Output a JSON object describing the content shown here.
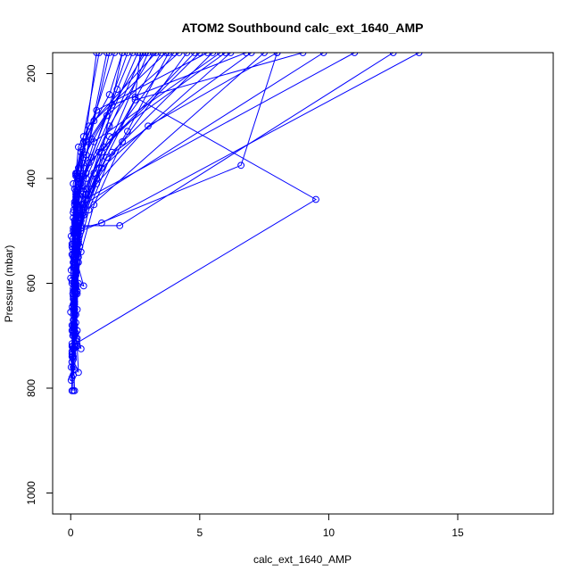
{
  "chart_data": {
    "type": "line",
    "title": "ATOM2 Southbound calc_ext_1640_AMP",
    "xlabel": "calc_ext_1640_AMP",
    "ylabel": "Pressure (mbar)",
    "xlim": [
      -0.7,
      18.7
    ],
    "ylim": [
      1040,
      160
    ],
    "y_reversed": true,
    "x_ticks": [
      0,
      5,
      10,
      15
    ],
    "y_ticks": [
      200,
      400,
      600,
      800,
      1000
    ],
    "series_color": "#0000ff",
    "marker": "open-circle",
    "grid": false,
    "legend": "none",
    "profiles": [
      {
        "points": [
          [
            0.05,
            805
          ],
          [
            0.02,
            760
          ],
          [
            0.08,
            700
          ],
          [
            0.1,
            640
          ],
          [
            0.15,
            570
          ],
          [
            0.3,
            480
          ],
          [
            0.6,
            400
          ],
          [
            1.5,
            300
          ],
          [
            3.2,
            160
          ]
        ]
      },
      {
        "points": [
          [
            0.1,
            805
          ],
          [
            0.05,
            750
          ],
          [
            0.12,
            690
          ],
          [
            0.2,
            620
          ],
          [
            0.4,
            540
          ],
          [
            0.9,
            450
          ],
          [
            2.0,
            330
          ],
          [
            4.5,
            160
          ]
        ]
      },
      {
        "points": [
          [
            0.15,
            805
          ],
          [
            0.1,
            740
          ],
          [
            0.15,
            680
          ],
          [
            0.2,
            610
          ],
          [
            0.35,
            530
          ],
          [
            0.7,
            460
          ],
          [
            1.6,
            350
          ],
          [
            5.5,
            160
          ]
        ]
      },
      {
        "points": [
          [
            0.02,
            785
          ],
          [
            0.05,
            735
          ],
          [
            0.1,
            680
          ],
          [
            0.12,
            600
          ],
          [
            0.25,
            520
          ],
          [
            0.5,
            470
          ],
          [
            1.2,
            380
          ],
          [
            6.2,
            160
          ]
        ]
      },
      {
        "points": [
          [
            0.05,
            780
          ],
          [
            0.08,
            725
          ],
          [
            0.1,
            660
          ],
          [
            0.15,
            590
          ],
          [
            0.3,
            510
          ],
          [
            0.6,
            440
          ],
          [
            1.4,
            360
          ],
          [
            7.0,
            160
          ]
        ]
      },
      {
        "points": [
          [
            0.1,
            775
          ],
          [
            0.05,
            720
          ],
          [
            0.15,
            650
          ],
          [
            0.2,
            580
          ],
          [
            0.3,
            500
          ],
          [
            0.45,
            450
          ],
          [
            2.5,
            250
          ],
          [
            9.0,
            160
          ]
        ]
      },
      {
        "points": [
          [
            0.15,
            765
          ],
          [
            0.2,
            720
          ],
          [
            0.25,
            650
          ],
          [
            0.3,
            560
          ],
          [
            0.4,
            490
          ],
          [
            1.0,
            410
          ],
          [
            3.0,
            300
          ],
          [
            8.0,
            160
          ]
        ]
      },
      {
        "points": [
          [
            0.05,
            740
          ],
          [
            0.1,
            690
          ],
          [
            0.2,
            620
          ],
          [
            0.2,
            545
          ],
          [
            0.4,
            480
          ],
          [
            0.8,
            420
          ],
          [
            2.2,
            310
          ],
          [
            3.8,
            160
          ]
        ]
      },
      {
        "points": [
          [
            0.08,
            735
          ],
          [
            0.12,
            680
          ],
          [
            0.15,
            615
          ],
          [
            0.25,
            535
          ],
          [
            0.35,
            485
          ],
          [
            0.6,
            430
          ],
          [
            1.1,
            350
          ],
          [
            2.8,
            160
          ]
        ]
      },
      {
        "points": [
          [
            0.05,
            730
          ],
          [
            0.1,
            670
          ],
          [
            0.2,
            600
          ],
          [
            0.3,
            525
          ],
          [
            0.5,
            470
          ],
          [
            1.0,
            400
          ],
          [
            2.0,
            160
          ]
        ]
      },
      {
        "points": [
          [
            0.12,
            725
          ],
          [
            0.15,
            660
          ],
          [
            0.15,
            590
          ],
          [
            0.2,
            515
          ],
          [
            0.3,
            455
          ],
          [
            0.5,
            380
          ],
          [
            1.5,
            160
          ]
        ]
      },
      {
        "points": [
          [
            0.08,
            720
          ],
          [
            0.1,
            650
          ],
          [
            0.2,
            580
          ],
          [
            0.15,
            505
          ],
          [
            0.25,
            450
          ],
          [
            0.5,
            395
          ],
          [
            1.8,
            230
          ],
          [
            2.4,
            160
          ]
        ]
      },
      {
        "points": [
          [
            0.05,
            715
          ],
          [
            0.06,
            645
          ],
          [
            0.1,
            570
          ],
          [
            0.15,
            495
          ],
          [
            0.2,
            445
          ],
          [
            0.35,
            410
          ],
          [
            1.0,
            160
          ]
        ]
      },
      {
        "points": [
          [
            0.2,
            710
          ],
          [
            0.15,
            640
          ],
          [
            0.1,
            560
          ],
          [
            0.25,
            490
          ],
          [
            0.3,
            440
          ],
          [
            0.6,
            390
          ],
          [
            2.6,
            160
          ]
        ]
      },
      {
        "points": [
          [
            0.1,
            700
          ],
          [
            0.12,
            630
          ],
          [
            0.2,
            555
          ],
          [
            0.3,
            485
          ],
          [
            0.45,
            430
          ],
          [
            1.2,
            350
          ],
          [
            4.0,
            160
          ]
        ]
      },
      {
        "points": [
          [
            0.05,
            690
          ],
          [
            0.08,
            620
          ],
          [
            0.1,
            545
          ],
          [
            0.2,
            480
          ],
          [
            0.35,
            420
          ],
          [
            0.7,
            370
          ],
          [
            5.0,
            160
          ]
        ]
      },
      {
        "points": [
          [
            0.15,
            685
          ],
          [
            0.1,
            610
          ],
          [
            0.25,
            540
          ],
          [
            0.3,
            475
          ],
          [
            0.5,
            425
          ],
          [
            1.5,
            320
          ],
          [
            6.0,
            160
          ]
        ]
      },
      {
        "points": [
          [
            0.4,
            725
          ],
          [
            0.25,
            690
          ],
          [
            0.2,
            610
          ],
          [
            0.25,
            530
          ],
          [
            0.4,
            470
          ],
          [
            0.9,
            390
          ],
          [
            3.5,
            160
          ]
        ]
      },
      {
        "points": [
          [
            0.3,
            770
          ],
          [
            0.25,
            720
          ],
          [
            0.15,
            660
          ],
          [
            0.2,
            585
          ],
          [
            0.3,
            520
          ],
          [
            0.5,
            465
          ],
          [
            7.5,
            160
          ]
        ]
      },
      {
        "points": [
          [
            0.1,
            760
          ],
          [
            0.15,
            700
          ],
          [
            0.1,
            630
          ],
          [
            0.15,
            560
          ],
          [
            0.2,
            500
          ],
          [
            0.35,
            455
          ],
          [
            9.8,
            160
          ]
        ]
      },
      {
        "points": [
          [
            0.05,
            750
          ],
          [
            0.2,
            695
          ],
          [
            0.12,
            625
          ],
          [
            0.2,
            550
          ],
          [
            0.3,
            495
          ],
          [
            0.55,
            440
          ],
          [
            11.0,
            160
          ]
        ]
      },
      {
        "points": [
          [
            0.1,
            745
          ],
          [
            0.1,
            690
          ],
          [
            0.25,
            620
          ],
          [
            0.25,
            545
          ],
          [
            0.4,
            495
          ],
          [
            1.2,
            485
          ],
          [
            13.5,
            160
          ]
        ]
      },
      {
        "points": [
          [
            0.08,
            740
          ],
          [
            0.12,
            685
          ],
          [
            0.1,
            615
          ],
          [
            0.2,
            540
          ],
          [
            0.3,
            490
          ],
          [
            1.9,
            490
          ],
          [
            12.5,
            160
          ]
        ]
      },
      {
        "points": [
          [
            0.15,
            720
          ],
          [
            0.2,
            660
          ],
          [
            0.3,
            600
          ],
          [
            0.5,
            605
          ],
          [
            0.25,
            560
          ],
          [
            0.4,
            500
          ],
          [
            6.6,
            375
          ],
          [
            8.0,
            160
          ]
        ]
      },
      {
        "points": [
          [
            0.2,
            715
          ],
          [
            9.5,
            440
          ],
          [
            2.5,
            245
          ],
          [
            2.7,
            160
          ]
        ]
      },
      {
        "points": [
          [
            0.25,
            705
          ],
          [
            0.15,
            650
          ],
          [
            0.2,
            580
          ],
          [
            0.3,
            520
          ],
          [
            0.5,
            450
          ],
          [
            1.1,
            380
          ],
          [
            3.0,
            160
          ]
        ]
      },
      {
        "points": [
          [
            0.1,
            695
          ],
          [
            0.15,
            635
          ],
          [
            0.2,
            565
          ],
          [
            0.3,
            505
          ],
          [
            0.2,
            440
          ],
          [
            0.8,
            360
          ],
          [
            2.2,
            160
          ]
        ]
      },
      {
        "points": [
          [
            0.05,
            680
          ],
          [
            0.1,
            625
          ],
          [
            0.15,
            555
          ],
          [
            0.2,
            490
          ],
          [
            0.3,
            430
          ],
          [
            0.6,
            355
          ],
          [
            1.4,
            160
          ]
        ]
      },
      {
        "points": [
          [
            0.2,
            675
          ],
          [
            0.25,
            615
          ],
          [
            0.3,
            550
          ],
          [
            0.4,
            480
          ],
          [
            0.6,
            420
          ],
          [
            1.3,
            340
          ],
          [
            4.8,
            160
          ]
        ]
      },
      {
        "points": [
          [
            0.12,
            670
          ],
          [
            0.2,
            605
          ],
          [
            0.15,
            540
          ],
          [
            0.25,
            470
          ],
          [
            0.4,
            410
          ],
          [
            0.9,
            330
          ],
          [
            5.8,
            160
          ]
        ]
      },
      {
        "points": [
          [
            0.0,
            655
          ],
          [
            0.05,
            595
          ],
          [
            0.1,
            525
          ],
          [
            0.2,
            470
          ],
          [
            0.3,
            405
          ],
          [
            0.8,
            325
          ],
          [
            2.9,
            160
          ]
        ]
      },
      {
        "points": [
          [
            0.05,
            600
          ],
          [
            0.1,
            550
          ],
          [
            0.15,
            480
          ],
          [
            0.2,
            425
          ],
          [
            0.25,
            395
          ],
          [
            0.6,
            330
          ],
          [
            1.7,
            160
          ]
        ]
      },
      {
        "points": [
          [
            0.0,
            590
          ],
          [
            0.05,
            530
          ],
          [
            0.1,
            465
          ],
          [
            0.15,
            420
          ],
          [
            0.2,
            390
          ],
          [
            0.5,
            320
          ],
          [
            1.1,
            160
          ]
        ]
      },
      {
        "points": [
          [
            0.02,
            575
          ],
          [
            0.08,
            515
          ],
          [
            0.12,
            460
          ],
          [
            0.1,
            410
          ],
          [
            0.3,
            380
          ],
          [
            0.7,
            300
          ],
          [
            3.3,
            160
          ]
        ]
      },
      {
        "points": [
          [
            0.1,
            560
          ],
          [
            0.12,
            505
          ],
          [
            0.2,
            455
          ],
          [
            0.3,
            400
          ],
          [
            0.5,
            360
          ],
          [
            1.4,
            280
          ],
          [
            4.2,
            160
          ]
        ]
      },
      {
        "points": [
          [
            0.05,
            545
          ],
          [
            0.1,
            500
          ],
          [
            0.15,
            450
          ],
          [
            0.2,
            395
          ],
          [
            0.4,
            350
          ],
          [
            1.6,
            260
          ],
          [
            6.8,
            160
          ]
        ]
      },
      {
        "points": [
          [
            0.08,
            535
          ],
          [
            0.1,
            495
          ],
          [
            0.15,
            445
          ],
          [
            0.2,
            392
          ],
          [
            0.3,
            340
          ],
          [
            1.0,
            270
          ],
          [
            5.3,
            160
          ]
        ]
      },
      {
        "points": [
          [
            0.05,
            525
          ],
          [
            0.15,
            485
          ],
          [
            0.2,
            435
          ],
          [
            0.35,
            400
          ],
          [
            0.5,
            330
          ],
          [
            1.5,
            240
          ],
          [
            2.0,
            160
          ]
        ]
      },
      {
        "points": [
          [
            0.02,
            510
          ],
          [
            0.1,
            475
          ],
          [
            0.2,
            430
          ],
          [
            0.25,
            390
          ],
          [
            0.45,
            345
          ],
          [
            0.9,
            290
          ],
          [
            3.7,
            160
          ]
        ]
      }
    ]
  }
}
